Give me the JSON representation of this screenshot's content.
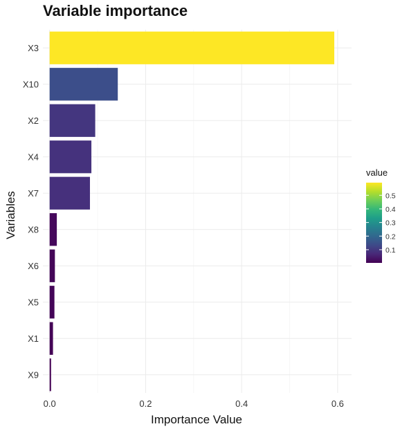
{
  "chart_data": {
    "type": "bar",
    "orientation": "horizontal",
    "title": "Variable importance",
    "xlabel": "Importance Value",
    "ylabel": "Variables",
    "categories": [
      "X3",
      "X10",
      "X2",
      "X4",
      "X7",
      "X8",
      "X6",
      "X5",
      "X1",
      "X9"
    ],
    "values": [
      0.593,
      0.142,
      0.095,
      0.087,
      0.084,
      0.015,
      0.011,
      0.01,
      0.007,
      0.003
    ],
    "xlim": [
      -0.014,
      0.629
    ],
    "x_ticks": [
      0.0,
      0.2,
      0.4,
      0.6
    ],
    "x_tick_labels": [
      "0.0",
      "0.2",
      "0.4",
      "0.6"
    ],
    "grid": true,
    "legend": {
      "title": "value",
      "position": "right",
      "type": "colorbar",
      "range": [
        0.003,
        0.593
      ],
      "ticks": [
        0.1,
        0.2,
        0.3,
        0.4,
        0.5
      ],
      "tick_labels": [
        "0.1",
        "0.2",
        "0.3",
        "0.4",
        "0.5"
      ]
    },
    "colormap": [
      "#440154",
      "#482878",
      "#3e4a89",
      "#31688e",
      "#26828e",
      "#1f9e89",
      "#35b779",
      "#6ece58",
      "#b5de2b",
      "#fde725"
    ]
  }
}
